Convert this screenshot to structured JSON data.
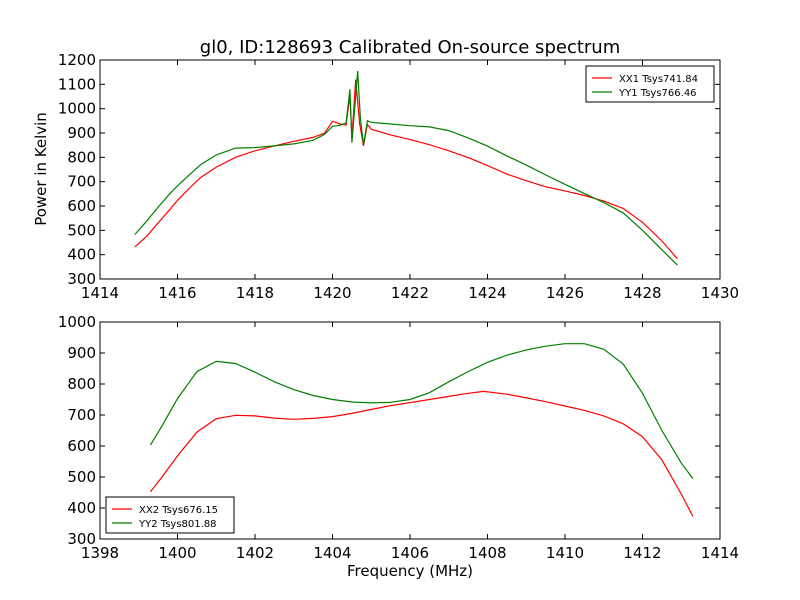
{
  "chart_data": [
    {
      "type": "line",
      "title": "gl0, ID:128693 Calibrated On-source spectrum",
      "xlabel": "",
      "ylabel": "Power in Kelvin",
      "xlim": [
        1414,
        1430
      ],
      "ylim": [
        300,
        1200
      ],
      "xticks": [
        1414,
        1416,
        1418,
        1420,
        1422,
        1424,
        1426,
        1428,
        1430
      ],
      "yticks": [
        300,
        400,
        500,
        600,
        700,
        800,
        900,
        1000,
        1100,
        1200
      ],
      "legend_position": "upper right",
      "series": [
        {
          "name": "XX1 Tsys741.84",
          "color": "#ff0000",
          "points": [
            [
              1414.9,
              432
            ],
            [
              1415.2,
              475
            ],
            [
              1415.5,
              530
            ],
            [
              1415.8,
              585
            ],
            [
              1416.0,
              623
            ],
            [
              1416.3,
              672
            ],
            [
              1416.6,
              717
            ],
            [
              1417.0,
              760
            ],
            [
              1417.5,
              800
            ],
            [
              1418.0,
              827
            ],
            [
              1418.5,
              847
            ],
            [
              1419.0,
              866
            ],
            [
              1419.5,
              882
            ],
            [
              1419.8,
              900
            ],
            [
              1420.0,
              948
            ],
            [
              1420.2,
              937
            ],
            [
              1420.35,
              932
            ],
            [
              1420.45,
              1055
            ],
            [
              1420.5,
              880
            ],
            [
              1420.6,
              1120
            ],
            [
              1420.7,
              940
            ],
            [
              1420.8,
              847
            ],
            [
              1420.9,
              935
            ],
            [
              1421.0,
              915
            ],
            [
              1421.5,
              892
            ],
            [
              1422.0,
              873
            ],
            [
              1422.5,
              852
            ],
            [
              1423.0,
              827
            ],
            [
              1423.5,
              799
            ],
            [
              1424.0,
              766
            ],
            [
              1424.5,
              731
            ],
            [
              1425.0,
              704
            ],
            [
              1425.5,
              679
            ],
            [
              1426.0,
              662
            ],
            [
              1426.5,
              643
            ],
            [
              1427.0,
              620
            ],
            [
              1427.5,
              590
            ],
            [
              1428.0,
              533
            ],
            [
              1428.5,
              456
            ],
            [
              1428.9,
              383
            ]
          ]
        },
        {
          "name": "YY1 Tsys766.46",
          "color": "#008000",
          "points": [
            [
              1414.9,
              483
            ],
            [
              1415.2,
              537
            ],
            [
              1415.5,
              595
            ],
            [
              1415.8,
              650
            ],
            [
              1416.0,
              683
            ],
            [
              1416.3,
              727
            ],
            [
              1416.6,
              770
            ],
            [
              1417.0,
              810
            ],
            [
              1417.5,
              838
            ],
            [
              1418.0,
              840
            ],
            [
              1418.5,
              847
            ],
            [
              1419.0,
              855
            ],
            [
              1419.5,
              870
            ],
            [
              1419.8,
              895
            ],
            [
              1420.0,
              927
            ],
            [
              1420.2,
              932
            ],
            [
              1420.35,
              942
            ],
            [
              1420.45,
              1080
            ],
            [
              1420.5,
              860
            ],
            [
              1420.65,
              1155
            ],
            [
              1420.72,
              960
            ],
            [
              1420.8,
              852
            ],
            [
              1420.9,
              950
            ],
            [
              1421.0,
              944
            ],
            [
              1421.5,
              937
            ],
            [
              1422.0,
              930
            ],
            [
              1422.5,
              925
            ],
            [
              1423.0,
              910
            ],
            [
              1423.5,
              880
            ],
            [
              1424.0,
              846
            ],
            [
              1424.5,
              806
            ],
            [
              1425.0,
              768
            ],
            [
              1425.5,
              728
            ],
            [
              1426.0,
              689
            ],
            [
              1426.5,
              651
            ],
            [
              1427.0,
              614
            ],
            [
              1427.5,
              572
            ],
            [
              1428.0,
              500
            ],
            [
              1428.5,
              420
            ],
            [
              1428.9,
              357
            ]
          ]
        }
      ]
    },
    {
      "type": "line",
      "title": "",
      "xlabel": "Frequency (MHz)",
      "ylabel": "",
      "xlim": [
        1398,
        1414
      ],
      "ylim": [
        300,
        1000
      ],
      "xticks": [
        1398,
        1400,
        1402,
        1404,
        1406,
        1408,
        1410,
        1412,
        1414
      ],
      "yticks": [
        300,
        400,
        500,
        600,
        700,
        800,
        900,
        1000
      ],
      "legend_position": "lower left",
      "series": [
        {
          "name": "XX2 Tsys676.15",
          "color": "#ff0000",
          "points": [
            [
              1399.3,
              452
            ],
            [
              1399.6,
              500
            ],
            [
              1400.0,
              568
            ],
            [
              1400.5,
              645
            ],
            [
              1401.0,
              688
            ],
            [
              1401.5,
              699
            ],
            [
              1402.0,
              697
            ],
            [
              1402.5,
              690
            ],
            [
              1403.0,
              686
            ],
            [
              1403.5,
              689
            ],
            [
              1404.0,
              695
            ],
            [
              1404.5,
              705
            ],
            [
              1405.0,
              718
            ],
            [
              1405.5,
              730
            ],
            [
              1406.0,
              740
            ],
            [
              1406.5,
              750
            ],
            [
              1407.0,
              760
            ],
            [
              1407.5,
              770
            ],
            [
              1407.9,
              776
            ],
            [
              1408.5,
              767
            ],
            [
              1409.0,
              755
            ],
            [
              1409.5,
              743
            ],
            [
              1410.0,
              729
            ],
            [
              1410.5,
              715
            ],
            [
              1411.0,
              697
            ],
            [
              1411.5,
              672
            ],
            [
              1412.0,
              630
            ],
            [
              1412.5,
              555
            ],
            [
              1413.0,
              445
            ],
            [
              1413.3,
              373
            ]
          ]
        },
        {
          "name": "YY2 Tsys801.88",
          "color": "#008000",
          "points": [
            [
              1399.3,
              603
            ],
            [
              1399.6,
              665
            ],
            [
              1400.0,
              753
            ],
            [
              1400.5,
              840
            ],
            [
              1401.0,
              873
            ],
            [
              1401.5,
              866
            ],
            [
              1402.0,
              838
            ],
            [
              1402.5,
              807
            ],
            [
              1403.0,
              782
            ],
            [
              1403.5,
              763
            ],
            [
              1404.0,
              750
            ],
            [
              1404.5,
              742
            ],
            [
              1405.0,
              739
            ],
            [
              1405.5,
              741
            ],
            [
              1406.0,
              750
            ],
            [
              1406.5,
              772
            ],
            [
              1407.0,
              807
            ],
            [
              1407.5,
              840
            ],
            [
              1408.0,
              870
            ],
            [
              1408.5,
              893
            ],
            [
              1409.0,
              910
            ],
            [
              1409.5,
              922
            ],
            [
              1410.0,
              930
            ],
            [
              1410.5,
              930
            ],
            [
              1411.0,
              912
            ],
            [
              1411.5,
              865
            ],
            [
              1412.0,
              770
            ],
            [
              1412.5,
              650
            ],
            [
              1413.0,
              545
            ],
            [
              1413.3,
              495
            ]
          ]
        }
      ]
    }
  ]
}
